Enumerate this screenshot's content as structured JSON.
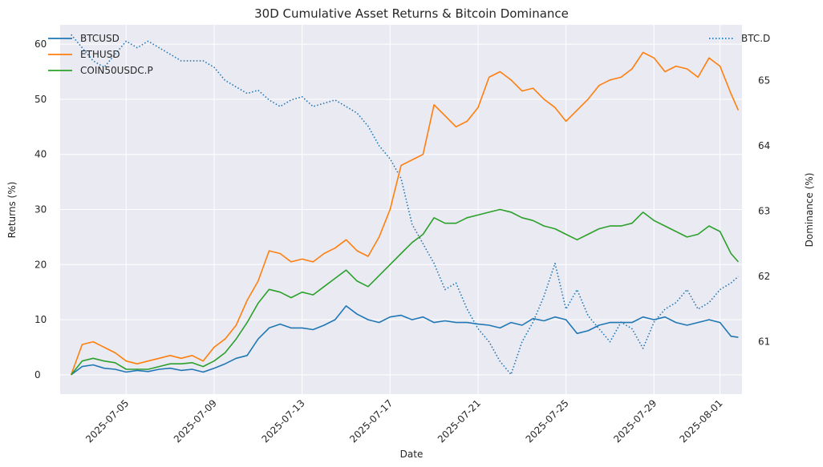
{
  "chart_data": {
    "type": "line",
    "title": "30D Cumulative Asset Returns & Bitcoin Dominance",
    "xlabel": "Date",
    "ylabel": "Returns (%)",
    "y2label": "Dominance (%)",
    "xlim": [
      "2025-07-02",
      "2025-08-02"
    ],
    "ylim": [
      -3.5,
      63.5
    ],
    "y2lim": [
      60.2,
      65.85
    ],
    "grid": true,
    "x_ticks": [
      "2025-07-05",
      "2025-07-09",
      "2025-07-13",
      "2025-07-17",
      "2025-07-21",
      "2025-07-25",
      "2025-07-29",
      "2025-08-01"
    ],
    "y_ticks": [
      0,
      10,
      20,
      30,
      40,
      50,
      60
    ],
    "y2_ticks": [
      61,
      62,
      63,
      64,
      65
    ],
    "legend_left": "upper-left",
    "legend_right": "upper-right",
    "x": [
      "2025-07-02T12:00",
      "2025-07-03",
      "2025-07-03T12:00",
      "2025-07-04",
      "2025-07-04T12:00",
      "2025-07-05",
      "2025-07-05T12:00",
      "2025-07-06",
      "2025-07-06T12:00",
      "2025-07-07",
      "2025-07-07T12:00",
      "2025-07-08",
      "2025-07-08T12:00",
      "2025-07-09",
      "2025-07-09T12:00",
      "2025-07-10",
      "2025-07-10T12:00",
      "2025-07-11",
      "2025-07-11T12:00",
      "2025-07-12",
      "2025-07-12T12:00",
      "2025-07-13",
      "2025-07-13T12:00",
      "2025-07-14",
      "2025-07-14T12:00",
      "2025-07-15",
      "2025-07-15T12:00",
      "2025-07-16",
      "2025-07-16T12:00",
      "2025-07-17",
      "2025-07-17T12:00",
      "2025-07-18",
      "2025-07-18T12:00",
      "2025-07-19",
      "2025-07-19T12:00",
      "2025-07-20",
      "2025-07-20T12:00",
      "2025-07-21",
      "2025-07-21T12:00",
      "2025-07-22",
      "2025-07-22T12:00",
      "2025-07-23",
      "2025-07-23T12:00",
      "2025-07-24",
      "2025-07-24T12:00",
      "2025-07-25",
      "2025-07-25T12:00",
      "2025-07-26",
      "2025-07-26T12:00",
      "2025-07-27",
      "2025-07-27T12:00",
      "2025-07-28",
      "2025-07-28T12:00",
      "2025-07-29",
      "2025-07-29T12:00",
      "2025-07-30",
      "2025-07-30T12:00",
      "2025-07-31",
      "2025-07-31T12:00",
      "2025-08-01",
      "2025-08-01T12:00",
      "2025-08-01T20:00"
    ],
    "series": [
      {
        "name": "BTCUSD",
        "axis": "left",
        "style": "solid",
        "color": "#1f77b4",
        "values": [
          0,
          1.5,
          1.8,
          1.2,
          1.0,
          0.5,
          0.8,
          0.6,
          1.0,
          1.2,
          0.8,
          1.0,
          0.5,
          1.2,
          2.0,
          3.0,
          3.5,
          6.5,
          8.5,
          9.2,
          8.5,
          8.5,
          8.2,
          9.0,
          10.0,
          12.5,
          11.0,
          10.0,
          9.5,
          10.5,
          10.8,
          10.0,
          10.5,
          9.5,
          9.8,
          9.5,
          9.5,
          9.2,
          9.0,
          8.5,
          9.5,
          9.0,
          10.2,
          9.8,
          10.5,
          10.0,
          7.5,
          8.0,
          9.0,
          9.5,
          9.5,
          9.5,
          10.5,
          10.0,
          10.5,
          9.5,
          9.0,
          9.5,
          10.0,
          9.5,
          7.0,
          6.8
        ]
      },
      {
        "name": "ETHUSD",
        "axis": "left",
        "style": "solid",
        "color": "#ff7f0e",
        "values": [
          0,
          5.5,
          6.0,
          5.0,
          4.0,
          2.5,
          2.0,
          2.5,
          3.0,
          3.5,
          3.0,
          3.5,
          2.5,
          5.0,
          6.5,
          9.0,
          13.5,
          17.0,
          22.5,
          22.0,
          20.5,
          21.0,
          20.5,
          22.0,
          23.0,
          24.5,
          22.5,
          21.5,
          25.0,
          30.0,
          38.0,
          39.0,
          40.0,
          49.0,
          47.0,
          45.0,
          46.0,
          48.5,
          54.0,
          55.0,
          53.5,
          51.5,
          52.0,
          50.0,
          48.5,
          46.0,
          48.0,
          50.0,
          52.5,
          53.5,
          54.0,
          55.5,
          58.5,
          57.5,
          55.0,
          56.0,
          55.5,
          54.0,
          57.5,
          56.0,
          51.0,
          48.0
        ]
      },
      {
        "name": "COIN50USDC.P",
        "axis": "left",
        "style": "solid",
        "color": "#2ca02c",
        "values": [
          0,
          2.5,
          3.0,
          2.5,
          2.2,
          1.0,
          1.0,
          1.0,
          1.5,
          2.0,
          2.0,
          2.2,
          1.5,
          2.5,
          4.0,
          6.5,
          9.5,
          13.0,
          15.5,
          15.0,
          14.0,
          15.0,
          14.5,
          16.0,
          17.5,
          19.0,
          17.0,
          16.0,
          18.0,
          20.0,
          22.0,
          24.0,
          25.5,
          28.5,
          27.5,
          27.5,
          28.5,
          29.0,
          29.5,
          30.0,
          29.5,
          28.5,
          28.0,
          27.0,
          26.5,
          25.5,
          24.5,
          25.5,
          26.5,
          27.0,
          27.0,
          27.5,
          29.5,
          28.0,
          27.0,
          26.0,
          25.0,
          25.5,
          27.0,
          26.0,
          22.0,
          20.5
        ]
      },
      {
        "name": "BTC.D",
        "axis": "right",
        "style": "dotted",
        "color": "#1f77b4",
        "values": [
          65.7,
          65.5,
          65.3,
          65.2,
          65.4,
          65.6,
          65.5,
          65.6,
          65.5,
          65.4,
          65.3,
          65.3,
          65.3,
          65.2,
          65.0,
          64.9,
          64.8,
          64.85,
          64.7,
          64.6,
          64.7,
          64.75,
          64.6,
          64.65,
          64.7,
          64.6,
          64.5,
          64.3,
          64.0,
          63.8,
          63.5,
          62.8,
          62.5,
          62.2,
          61.8,
          61.9,
          61.5,
          61.2,
          61.0,
          60.7,
          60.5,
          61.0,
          61.3,
          61.7,
          62.2,
          61.5,
          61.8,
          61.4,
          61.2,
          61.0,
          61.3,
          61.2,
          60.9,
          61.3,
          61.5,
          61.6,
          61.8,
          61.5,
          61.6,
          61.8,
          61.9,
          62.0
        ]
      }
    ]
  }
}
